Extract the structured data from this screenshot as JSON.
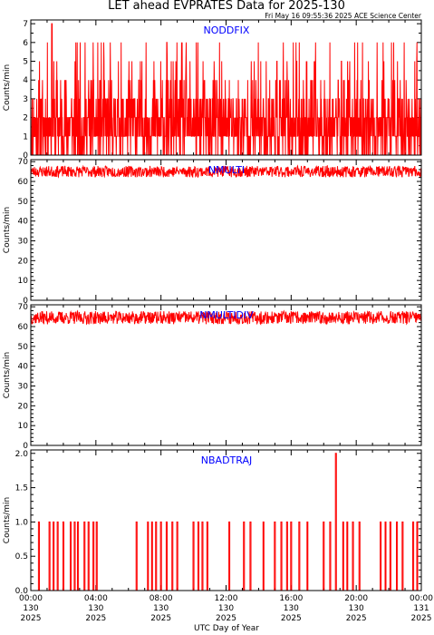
{
  "figure": {
    "title": "LET ahead EVPRATES Data for 2025-130",
    "timestamp": "Fri May 16 09:55:36 2025 ACE Science Center",
    "xlabel": "UTC Day of Year",
    "colors": {
      "trace": "#ff0000",
      "panel_label": "#0000ff",
      "axes": "#000000",
      "background": "#ffffff"
    }
  },
  "chart_data": [
    {
      "type": "line",
      "series": [
        {
          "name": "NODDFIX"
        }
      ],
      "ylabel": "Counts/min",
      "ylim": [
        0,
        7.2
      ],
      "yticks": [
        0,
        1,
        2,
        3,
        4,
        5,
        6,
        7
      ],
      "ytick_labels": [
        "0",
        "1",
        "2",
        "3",
        "4",
        "5",
        "6",
        "7"
      ],
      "xlim": [
        0,
        24
      ],
      "values_summary": {
        "typical_range": [
          0,
          4
        ],
        "max": 7,
        "max_at_hour": 1.3
      },
      "seed": 11,
      "kind": "noisyint"
    },
    {
      "type": "line",
      "series": [
        {
          "name": "NMULTI"
        }
      ],
      "ylabel": "Counts/min",
      "ylim": [
        0,
        71
      ],
      "yticks": [
        0,
        10,
        20,
        30,
        40,
        50,
        60,
        70
      ],
      "ytick_labels": [
        "0",
        "10",
        "20",
        "30",
        "40",
        "50",
        "60",
        "70"
      ],
      "xlim": [
        0,
        24
      ],
      "values_summary": {
        "typical_range": [
          62,
          68
        ],
        "mean": 65
      },
      "seed": 23,
      "kind": "band"
    },
    {
      "type": "line",
      "series": [
        {
          "name": "NMULTIDIV"
        }
      ],
      "ylabel": "Counts/min",
      "ylim": [
        0,
        71
      ],
      "yticks": [
        0,
        10,
        20,
        30,
        40,
        50,
        60,
        70
      ],
      "ytick_labels": [
        "0",
        "10",
        "20",
        "30",
        "40",
        "50",
        "60",
        "70"
      ],
      "xlim": [
        0,
        24
      ],
      "values_summary": {
        "typical_range": [
          61,
          68
        ],
        "mean": 65
      },
      "seed": 37,
      "kind": "band"
    },
    {
      "type": "line",
      "series": [
        {
          "name": "NBADTRAJ"
        }
      ],
      "ylabel": "Counts/min",
      "ylim": [
        0,
        2.05
      ],
      "yticks": [
        0,
        0.5,
        1.0,
        1.5,
        2.0
      ],
      "ytick_labels": [
        "0.0",
        "0.5",
        "1.0",
        "1.5",
        "2.0"
      ],
      "xlim": [
        0,
        24
      ],
      "spikes": [
        {
          "x": 0.5,
          "y": 1
        },
        {
          "x": 1.15,
          "y": 1
        },
        {
          "x": 1.4,
          "y": 1
        },
        {
          "x": 1.65,
          "y": 1
        },
        {
          "x": 2.0,
          "y": 1
        },
        {
          "x": 2.45,
          "y": 1
        },
        {
          "x": 2.7,
          "y": 1
        },
        {
          "x": 2.9,
          "y": 1
        },
        {
          "x": 3.3,
          "y": 1
        },
        {
          "x": 3.55,
          "y": 1
        },
        {
          "x": 3.85,
          "y": 1
        },
        {
          "x": 4.05,
          "y": 1
        },
        {
          "x": 6.5,
          "y": 1
        },
        {
          "x": 7.2,
          "y": 1
        },
        {
          "x": 7.45,
          "y": 1
        },
        {
          "x": 7.7,
          "y": 1
        },
        {
          "x": 8.0,
          "y": 1
        },
        {
          "x": 8.35,
          "y": 1
        },
        {
          "x": 8.7,
          "y": 1
        },
        {
          "x": 9.0,
          "y": 1
        },
        {
          "x": 10.0,
          "y": 1
        },
        {
          "x": 10.3,
          "y": 1
        },
        {
          "x": 10.55,
          "y": 1
        },
        {
          "x": 10.85,
          "y": 1
        },
        {
          "x": 12.2,
          "y": 1
        },
        {
          "x": 13.1,
          "y": 1
        },
        {
          "x": 13.5,
          "y": 1
        },
        {
          "x": 14.3,
          "y": 1
        },
        {
          "x": 15.0,
          "y": 1
        },
        {
          "x": 15.4,
          "y": 1
        },
        {
          "x": 15.75,
          "y": 1
        },
        {
          "x": 16.0,
          "y": 1
        },
        {
          "x": 16.5,
          "y": 1
        },
        {
          "x": 17.0,
          "y": 1
        },
        {
          "x": 18.0,
          "y": 1
        },
        {
          "x": 18.4,
          "y": 1
        },
        {
          "x": 18.75,
          "y": 2
        },
        {
          "x": 19.2,
          "y": 1
        },
        {
          "x": 19.45,
          "y": 1
        },
        {
          "x": 19.8,
          "y": 1
        },
        {
          "x": 20.2,
          "y": 1
        },
        {
          "x": 21.5,
          "y": 1
        },
        {
          "x": 21.8,
          "y": 1
        },
        {
          "x": 22.1,
          "y": 1
        },
        {
          "x": 22.5,
          "y": 1
        },
        {
          "x": 22.85,
          "y": 1
        },
        {
          "x": 23.5,
          "y": 1
        },
        {
          "x": 23.75,
          "y": 1
        }
      ],
      "kind": "spikes"
    }
  ],
  "xaxis": {
    "ticks": [
      {
        "h": 0,
        "label": "00:00",
        "doy": "130",
        "year": "2025"
      },
      {
        "h": 4,
        "label": "04:00",
        "doy": "130",
        "year": "2025"
      },
      {
        "h": 8,
        "label": "08:00",
        "doy": "130",
        "year": "2025"
      },
      {
        "h": 12,
        "label": "12:00",
        "doy": "130",
        "year": "2025"
      },
      {
        "h": 16,
        "label": "16:00",
        "doy": "130",
        "year": "2025"
      },
      {
        "h": 20,
        "label": "20:00",
        "doy": "130",
        "year": "2025"
      },
      {
        "h": 24,
        "label": "00:00",
        "doy": "131",
        "year": "2025"
      }
    ]
  }
}
